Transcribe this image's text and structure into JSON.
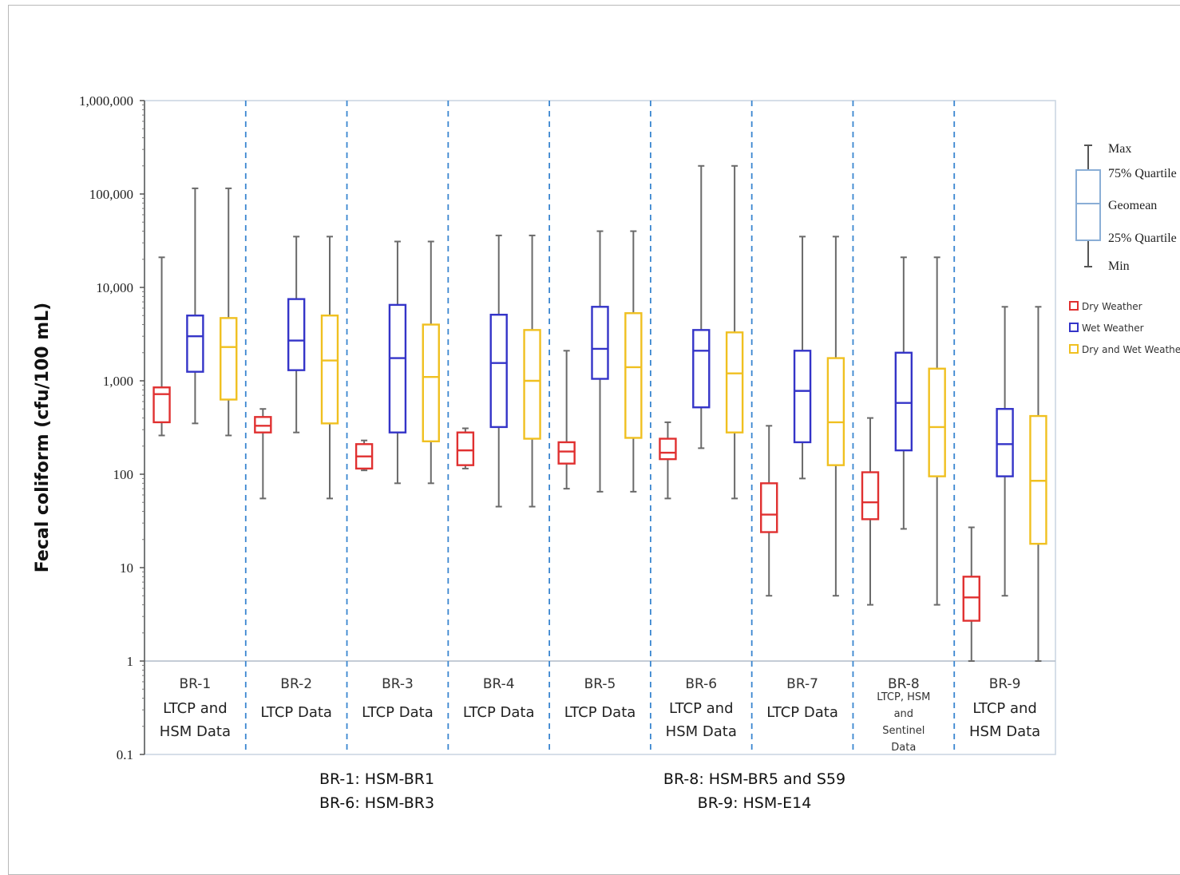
{
  "chart_data": {
    "type": "box",
    "ylabel": "Fecal coliform (cfu/100 mL)",
    "yscale": "log",
    "ylim": [
      0.1,
      1000000
    ],
    "yticks": [
      "0.1",
      "1",
      "10",
      "100",
      "1,000",
      "10,000",
      "100,000",
      "1,000,000"
    ],
    "key": {
      "max": "Max",
      "q75": "75% Quartile",
      "geomean": "Geomean",
      "q25": "25% Quartile",
      "min": "Min"
    },
    "series": [
      {
        "name": "Dry Weather",
        "color": "#e03030"
      },
      {
        "name": "Wet Weather",
        "color": "#3434c8"
      },
      {
        "name": "Dry and Wet Weather",
        "color": "#f0c020"
      }
    ],
    "groups": [
      {
        "site": "BR-1",
        "desc": [
          "LTCP and",
          "HSM  Data"
        ],
        "desc_size": "normal",
        "boxes": [
          {
            "min": 260,
            "q25": 360,
            "geomean": 720,
            "q75": 850,
            "max": 21000
          },
          {
            "min": 350,
            "q25": 1250,
            "geomean": 3000,
            "q75": 5000,
            "max": 115000
          },
          {
            "min": 260,
            "q25": 630,
            "geomean": 2300,
            "q75": 4700,
            "max": 115000
          }
        ]
      },
      {
        "site": "BR-2",
        "desc": [
          "LTCP Data"
        ],
        "desc_size": "normal",
        "boxes": [
          {
            "min": 55,
            "q25": 280,
            "geomean": 330,
            "q75": 410,
            "max": 500
          },
          {
            "min": 280,
            "q25": 1300,
            "geomean": 2700,
            "q75": 7500,
            "max": 35000
          },
          {
            "min": 55,
            "q25": 350,
            "geomean": 1650,
            "q75": 5000,
            "max": 35000
          }
        ]
      },
      {
        "site": "BR-3",
        "desc": [
          "LTCP Data"
        ],
        "desc_size": "normal",
        "boxes": [
          {
            "min": 110,
            "q25": 115,
            "geomean": 155,
            "q75": 210,
            "max": 230
          },
          {
            "min": 80,
            "q25": 280,
            "geomean": 1750,
            "q75": 6500,
            "max": 31000
          },
          {
            "min": 80,
            "q25": 225,
            "geomean": 1100,
            "q75": 4000,
            "max": 31000
          }
        ]
      },
      {
        "site": "BR-4",
        "desc": [
          "LTCP Data"
        ],
        "desc_size": "normal",
        "boxes": [
          {
            "min": 115,
            "q25": 125,
            "geomean": 180,
            "q75": 280,
            "max": 310
          },
          {
            "min": 45,
            "q25": 320,
            "geomean": 1550,
            "q75": 5100,
            "max": 36000
          },
          {
            "min": 45,
            "q25": 240,
            "geomean": 1000,
            "q75": 3500,
            "max": 36000
          }
        ]
      },
      {
        "site": "BR-5",
        "desc": [
          "LTCP Data"
        ],
        "desc_size": "normal",
        "boxes": [
          {
            "min": 70,
            "q25": 130,
            "geomean": 175,
            "q75": 220,
            "max": 2100
          },
          {
            "min": 65,
            "q25": 1050,
            "geomean": 2200,
            "q75": 6200,
            "max": 40000
          },
          {
            "min": 65,
            "q25": 245,
            "geomean": 1400,
            "q75": 5300,
            "max": 40000
          }
        ]
      },
      {
        "site": "BR-6",
        "desc": [
          "LTCP and",
          "HSM Data"
        ],
        "desc_size": "normal",
        "boxes": [
          {
            "min": 55,
            "q25": 145,
            "geomean": 170,
            "q75": 240,
            "max": 360
          },
          {
            "min": 190,
            "q25": 520,
            "geomean": 2100,
            "q75": 3500,
            "max": 200000
          },
          {
            "min": 55,
            "q25": 280,
            "geomean": 1200,
            "q75": 3300,
            "max": 200000
          }
        ]
      },
      {
        "site": "BR-7",
        "desc": [
          "LTCP Data"
        ],
        "desc_size": "normal",
        "boxes": [
          {
            "min": 5,
            "q25": 24,
            "geomean": 37,
            "q75": 80,
            "max": 330
          },
          {
            "min": 90,
            "q25": 220,
            "geomean": 780,
            "q75": 2100,
            "max": 35000
          },
          {
            "min": 5,
            "q25": 125,
            "geomean": 360,
            "q75": 1750,
            "max": 35000
          }
        ]
      },
      {
        "site": "BR-8",
        "desc": [
          "LTCP, HSM",
          "and",
          "Sentinel",
          "Data"
        ],
        "desc_size": "small",
        "boxes": [
          {
            "min": 4,
            "q25": 33,
            "geomean": 50,
            "q75": 105,
            "max": 400
          },
          {
            "min": 26,
            "q25": 180,
            "geomean": 580,
            "q75": 2000,
            "max": 21000
          },
          {
            "min": 4,
            "q25": 95,
            "geomean": 320,
            "q75": 1350,
            "max": 21000
          }
        ]
      },
      {
        "site": "BR-9",
        "desc": [
          "LTCP and",
          "HSM Data"
        ],
        "desc_size": "normal",
        "boxes": [
          {
            "min": 1,
            "q25": 2.7,
            "geomean": 4.8,
            "q75": 8,
            "max": 27
          },
          {
            "min": 5,
            "q25": 95,
            "geomean": 210,
            "q75": 500,
            "max": 6200
          },
          {
            "min": 1,
            "q25": 18,
            "geomean": 85,
            "q75": 420,
            "max": 6200
          }
        ]
      }
    ],
    "footnotes": [
      [
        "BR-1: HSM-BR1",
        "BR-6: HSM-BR3"
      ],
      [
        "BR-8: HSM-BR5 and S59",
        "BR-9: HSM-E14"
      ]
    ]
  }
}
